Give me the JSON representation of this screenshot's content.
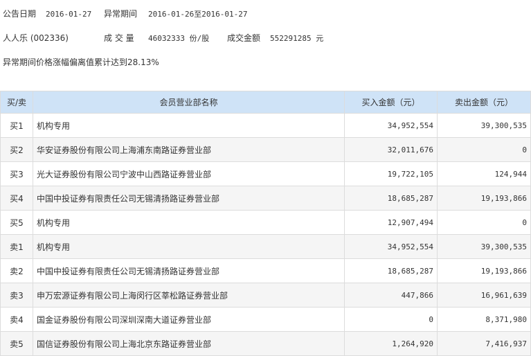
{
  "info": {
    "announce_label": "公告日期",
    "announce_date": "2016-01-27",
    "period_label": "异常期间",
    "period": "2016-01-26至2016-01-27",
    "stock": "人人乐 (002336)",
    "volume_label": "成 交 量",
    "volume": "46032333 份/股",
    "amount_label": "成交金额",
    "amount": "552291285 元",
    "note": "异常期间价格涨幅偏离值累计达到28.13%"
  },
  "table": {
    "headers": [
      "买/卖",
      "会员营业部名称",
      "买入金额（元）",
      "卖出金额（元）"
    ],
    "rows": [
      [
        "买1",
        "机构专用",
        "34,952,554",
        "39,300,535"
      ],
      [
        "买2",
        "华安证券股份有限公司上海浦东南路证券营业部",
        "32,011,676",
        "0"
      ],
      [
        "买3",
        "光大证券股份有限公司宁波中山西路证券营业部",
        "19,722,105",
        "124,944"
      ],
      [
        "买4",
        "中国中投证券有限责任公司无锡清扬路证券营业部",
        "18,685,287",
        "19,193,866"
      ],
      [
        "买5",
        "机构专用",
        "12,907,494",
        "0"
      ],
      [
        "卖1",
        "机构专用",
        "34,952,554",
        "39,300,535"
      ],
      [
        "卖2",
        "中国中投证券有限责任公司无锡清扬路证券营业部",
        "18,685,287",
        "19,193,866"
      ],
      [
        "卖3",
        "申万宏源证券有限公司上海闵行区莘松路证券营业部",
        "447,866",
        "16,961,639"
      ],
      [
        "卖4",
        "国金证券股份有限公司深圳深南大道证券营业部",
        "0",
        "8,371,980"
      ],
      [
        "卖5",
        "国信证券股份有限公司上海北京东路证券营业部",
        "1,264,920",
        "7,416,937"
      ]
    ]
  }
}
